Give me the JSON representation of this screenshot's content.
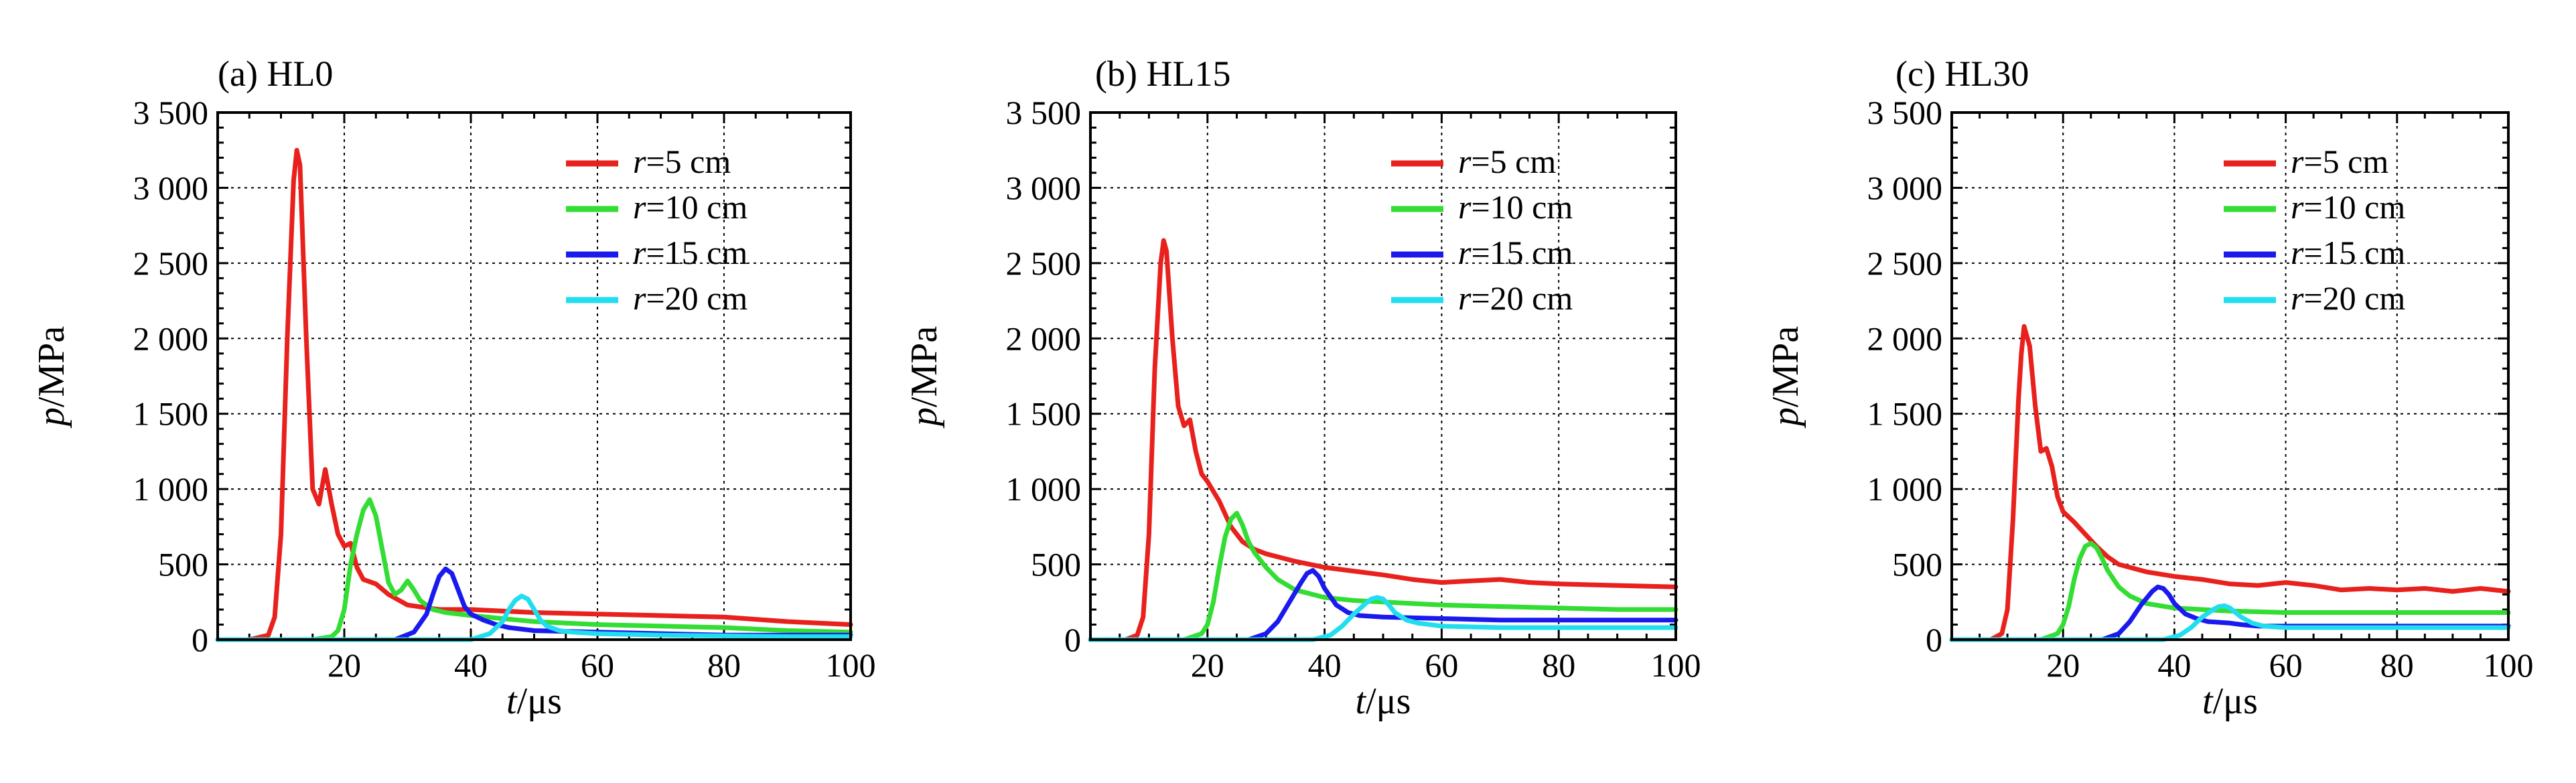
{
  "chart_data": [
    {
      "type": "line",
      "title": "(a) HL0",
      "xlabel": {
        "var": "t",
        "unit": "/μs"
      },
      "ylabel": {
        "var": "p",
        "unit": "/MPa"
      },
      "xlim": [
        0,
        100
      ],
      "ylim": [
        0,
        3500
      ],
      "xticks": [
        0,
        20,
        40,
        60,
        80,
        100
      ],
      "xtick_labels": [
        "",
        "20",
        "40",
        "60",
        "80",
        "100"
      ],
      "yticks": [
        0,
        500,
        1000,
        1500,
        2000,
        2500,
        3000,
        3500
      ],
      "ytick_labels": [
        "0",
        "500",
        "1 000",
        "1 500",
        "2 000",
        "2 500",
        "3 000",
        "3 500"
      ],
      "grid": true,
      "legend_position": "top-right",
      "series": [
        {
          "name": "r=5 cm",
          "legend": {
            "var": "r",
            "rest": "=5 cm"
          },
          "color": "#e8211d",
          "x": [
            0,
            5,
            8,
            9,
            10,
            11,
            12,
            12.5,
            13,
            14,
            15,
            16,
            17,
            18,
            19,
            20,
            21,
            22,
            23,
            25,
            27,
            30,
            35,
            40,
            50,
            60,
            70,
            80,
            90,
            100
          ],
          "y": [
            0,
            0,
            30,
            150,
            700,
            2000,
            3050,
            3250,
            3150,
            2000,
            1000,
            900,
            1130,
            900,
            700,
            620,
            640,
            480,
            400,
            370,
            300,
            230,
            200,
            200,
            180,
            170,
            160,
            150,
            120,
            100
          ]
        },
        {
          "name": "r=10 cm",
          "legend": {
            "var": "r",
            "rest": "=10 cm"
          },
          "color": "#33dd33",
          "x": [
            0,
            15,
            18,
            19,
            20,
            21,
            22,
            23,
            24,
            25,
            26,
            27,
            28,
            29,
            30,
            31,
            32,
            34,
            36,
            40,
            50,
            60,
            70,
            80,
            90,
            100
          ],
          "y": [
            0,
            0,
            20,
            60,
            200,
            500,
            700,
            860,
            930,
            820,
            600,
            380,
            300,
            330,
            390,
            330,
            260,
            200,
            180,
            160,
            120,
            100,
            90,
            80,
            60,
            50
          ]
        },
        {
          "name": "r=15 cm",
          "legend": {
            "var": "r",
            "rest": "=15 cm"
          },
          "color": "#1a1aee",
          "x": [
            0,
            28,
            31,
            33,
            34,
            35,
            36,
            37,
            38,
            39,
            40,
            42,
            44,
            46,
            50,
            60,
            70,
            80,
            90,
            100
          ],
          "y": [
            0,
            0,
            50,
            170,
            300,
            420,
            470,
            440,
            330,
            220,
            170,
            130,
            100,
            80,
            60,
            50,
            40,
            30,
            30,
            30
          ]
        },
        {
          "name": "r=20 cm",
          "legend": {
            "var": "r",
            "rest": "=20 cm"
          },
          "color": "#22ddee",
          "x": [
            0,
            40,
            43,
            45,
            46,
            47,
            48,
            49,
            50,
            51,
            52,
            54,
            56,
            60,
            70,
            80,
            90,
            100
          ],
          "y": [
            0,
            0,
            40,
            120,
            200,
            260,
            290,
            270,
            200,
            130,
            90,
            60,
            50,
            40,
            30,
            25,
            20,
            20
          ]
        }
      ]
    },
    {
      "type": "line",
      "title": "(b) HL15",
      "xlabel": {
        "var": "t",
        "unit": "/μs"
      },
      "ylabel": {
        "var": "p",
        "unit": "/MPa"
      },
      "xlim": [
        0,
        100
      ],
      "ylim": [
        0,
        3500
      ],
      "xticks": [
        0,
        20,
        40,
        60,
        80,
        100
      ],
      "xtick_labels": [
        "",
        "20",
        "40",
        "60",
        "80",
        "100"
      ],
      "yticks": [
        0,
        500,
        1000,
        1500,
        2000,
        2500,
        3000,
        3500
      ],
      "ytick_labels": [
        "0",
        "500",
        "1 000",
        "1 500",
        "2 000",
        "2 500",
        "3 000",
        "3 500"
      ],
      "grid": true,
      "legend_position": "top-right",
      "series": [
        {
          "name": "r=5 cm",
          "legend": {
            "var": "r",
            "rest": "=5 cm"
          },
          "color": "#e8211d",
          "x": [
            0,
            6,
            8,
            9,
            10,
            11,
            12,
            12.5,
            13,
            14,
            15,
            16,
            17,
            18,
            19,
            20,
            22,
            24,
            26,
            28,
            30,
            35,
            40,
            50,
            55,
            60,
            65,
            70,
            75,
            80,
            90,
            100
          ],
          "y": [
            0,
            0,
            30,
            150,
            700,
            1800,
            2500,
            2650,
            2580,
            2000,
            1550,
            1420,
            1460,
            1250,
            1100,
            1050,
            920,
            750,
            650,
            600,
            570,
            520,
            480,
            430,
            400,
            380,
            390,
            400,
            380,
            370,
            360,
            350
          ]
        },
        {
          "name": "r=10 cm",
          "legend": {
            "var": "r",
            "rest": "=10 cm"
          },
          "color": "#33dd33",
          "x": [
            0,
            16,
            19,
            20,
            21,
            22,
            23,
            24,
            25,
            26,
            27,
            28,
            30,
            32,
            35,
            40,
            45,
            50,
            60,
            70,
            80,
            90,
            100
          ],
          "y": [
            0,
            0,
            40,
            100,
            250,
            480,
            680,
            800,
            840,
            760,
            650,
            580,
            480,
            400,
            330,
            280,
            260,
            250,
            230,
            220,
            210,
            200,
            200
          ]
        },
        {
          "name": "r=15 cm",
          "legend": {
            "var": "r",
            "rest": "=15 cm"
          },
          "color": "#1a1aee",
          "x": [
            0,
            27,
            30,
            32,
            34,
            36,
            37,
            38,
            39,
            40,
            42,
            44,
            46,
            50,
            60,
            70,
            80,
            90,
            100
          ],
          "y": [
            0,
            0,
            40,
            120,
            250,
            380,
            440,
            460,
            420,
            340,
            230,
            180,
            160,
            150,
            140,
            130,
            130,
            130,
            130
          ]
        },
        {
          "name": "r=20 cm",
          "legend": {
            "var": "r",
            "rest": "=20 cm"
          },
          "color": "#22ddee",
          "x": [
            0,
            38,
            41,
            43,
            45,
            47,
            48,
            49,
            50,
            51,
            52,
            54,
            56,
            60,
            70,
            80,
            90,
            100
          ],
          "y": [
            0,
            0,
            30,
            90,
            170,
            240,
            270,
            280,
            270,
            230,
            180,
            130,
            110,
            90,
            80,
            80,
            80,
            80
          ]
        }
      ]
    },
    {
      "type": "line",
      "title": "(c) HL30",
      "xlabel": {
        "var": "t",
        "unit": "/μs"
      },
      "ylabel": {
        "var": "p",
        "unit": "/MPa"
      },
      "xlim": [
        0,
        100
      ],
      "ylim": [
        0,
        3500
      ],
      "xticks": [
        0,
        20,
        40,
        60,
        80,
        100
      ],
      "xtick_labels": [
        "",
        "20",
        "40",
        "60",
        "80",
        "100"
      ],
      "yticks": [
        0,
        500,
        1000,
        1500,
        2000,
        2500,
        3000,
        3500
      ],
      "ytick_labels": [
        "0",
        "500",
        "1 000",
        "1 500",
        "2 000",
        "2 500",
        "3 000",
        "3 500"
      ],
      "grid": true,
      "legend_position": "top-right",
      "series": [
        {
          "name": "r=5 cm",
          "legend": {
            "var": "r",
            "rest": "=5 cm"
          },
          "color": "#e8211d",
          "x": [
            0,
            7,
            9,
            10,
            11,
            12,
            12.5,
            13,
            14,
            15,
            16,
            17,
            18,
            19,
            20,
            22,
            24,
            26,
            28,
            30,
            35,
            40,
            45,
            50,
            55,
            60,
            65,
            70,
            75,
            80,
            85,
            90,
            95,
            100
          ],
          "y": [
            0,
            0,
            40,
            200,
            800,
            1600,
            1900,
            2080,
            1950,
            1550,
            1250,
            1270,
            1150,
            950,
            850,
            780,
            700,
            620,
            550,
            500,
            450,
            420,
            400,
            370,
            360,
            380,
            360,
            330,
            340,
            330,
            340,
            320,
            340,
            320
          ]
        },
        {
          "name": "r=10 cm",
          "legend": {
            "var": "r",
            "rest": "=10 cm"
          },
          "color": "#33dd33",
          "x": [
            0,
            16,
            19,
            20,
            21,
            22,
            23,
            24,
            25,
            26,
            27,
            28,
            30,
            32,
            35,
            40,
            50,
            60,
            70,
            80,
            90,
            100
          ],
          "y": [
            0,
            0,
            40,
            100,
            220,
            400,
            540,
            620,
            640,
            610,
            540,
            460,
            350,
            290,
            240,
            210,
            190,
            180,
            180,
            180,
            180,
            180
          ]
        },
        {
          "name": "r=15 cm",
          "legend": {
            "var": "r",
            "rest": "=15 cm"
          },
          "color": "#1a1aee",
          "x": [
            0,
            27,
            30,
            32,
            34,
            36,
            37,
            38,
            39,
            40,
            42,
            44,
            46,
            50,
            52,
            55,
            60,
            70,
            80,
            90,
            100
          ],
          "y": [
            0,
            0,
            40,
            120,
            230,
            320,
            350,
            340,
            300,
            240,
            170,
            140,
            120,
            110,
            100,
            90,
            90,
            90,
            90,
            90,
            90
          ]
        },
        {
          "name": "r=20 cm",
          "legend": {
            "var": "r",
            "rest": "=20 cm"
          },
          "color": "#22ddee",
          "x": [
            0,
            38,
            41,
            43,
            45,
            47,
            48,
            49,
            50,
            51,
            52,
            54,
            56,
            60,
            70,
            80,
            90,
            100
          ],
          "y": [
            0,
            0,
            30,
            80,
            150,
            200,
            220,
            225,
            210,
            180,
            150,
            110,
            90,
            80,
            80,
            80,
            80,
            80
          ]
        }
      ]
    }
  ]
}
